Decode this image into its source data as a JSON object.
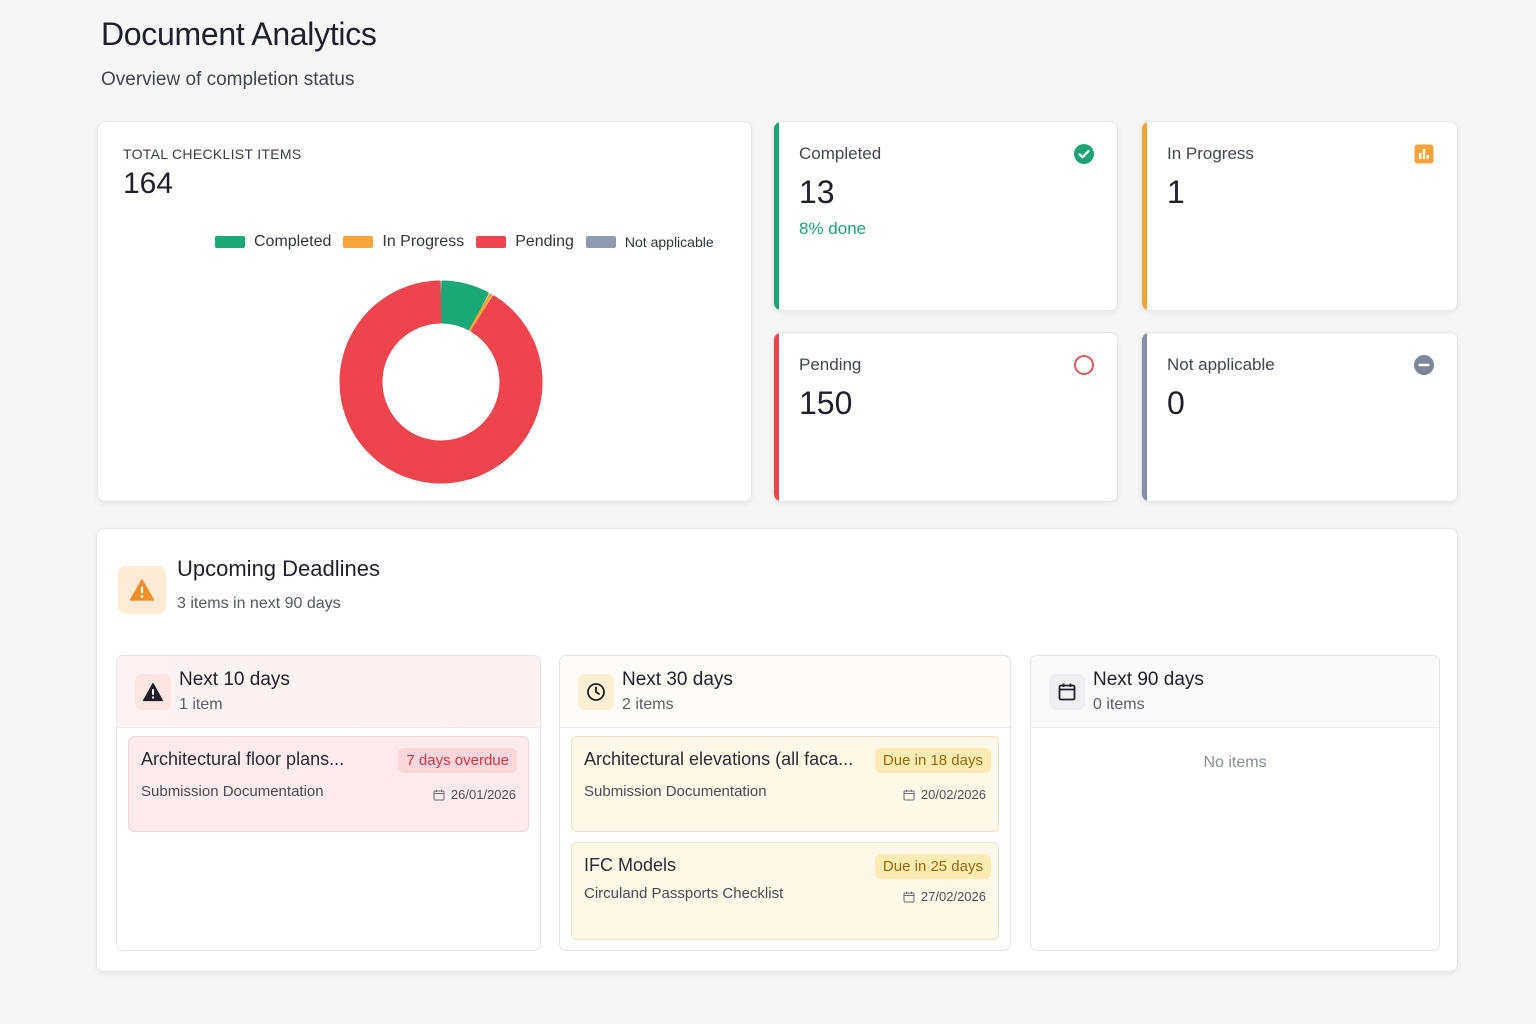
{
  "header": {
    "title": "Document Analytics",
    "subtitle": "Overview of completion status"
  },
  "summary": {
    "total_label": "TOTAL CHECKLIST ITEMS",
    "total_value": "164"
  },
  "chart_data": {
    "type": "pie",
    "variant": "donut",
    "categories": [
      "Completed",
      "In Progress",
      "Pending",
      "Not applicable"
    ],
    "values": [
      13,
      1,
      150,
      0
    ],
    "colors": [
      "#1aa877",
      "#f7a43a",
      "#ee444e",
      "#8f9bb3"
    ],
    "legend_placement": "top"
  },
  "stats": [
    {
      "label": "Completed",
      "value": "13",
      "extra": "8% done",
      "color": "#1fa374",
      "icon": "check-circle-icon"
    },
    {
      "label": "In Progress",
      "value": "1",
      "extra": "",
      "color": "#f3a33c",
      "icon": "bar-chart-icon"
    },
    {
      "label": "Pending",
      "value": "150",
      "extra": "",
      "color": "#e5484d",
      "icon": "empty-circle-icon"
    },
    {
      "label": "Not applicable",
      "value": "0",
      "extra": "",
      "color": "#8891a3",
      "icon": "minus-circle-icon"
    }
  ],
  "deadlines": {
    "title": "Upcoming Deadlines",
    "subtitle": "3 items in next 90 days",
    "columns": [
      {
        "title": "Next 10 days",
        "count": "1 item",
        "icon": "warning-icon",
        "items": [
          {
            "name": "Architectural floor plans...",
            "category": "Submission Documentation",
            "badge": "7 days overdue",
            "date": "26/01/2026",
            "status": "overdue"
          }
        ]
      },
      {
        "title": "Next 30 days",
        "count": "2 items",
        "icon": "clock-icon",
        "items": [
          {
            "name": "Architectural elevations (all faca...",
            "category": "Submission Documentation",
            "badge": "Due in 18 days",
            "date": "20/02/2026",
            "status": "due"
          },
          {
            "name": "IFC Models",
            "category": "Circuland Passports Checklist",
            "badge": "Due in 25 days",
            "date": "27/02/2026",
            "status": "due"
          }
        ]
      },
      {
        "title": "Next 90 days",
        "count": "0 items",
        "icon": "calendar-icon",
        "empty_text": "No items",
        "items": []
      }
    ]
  }
}
